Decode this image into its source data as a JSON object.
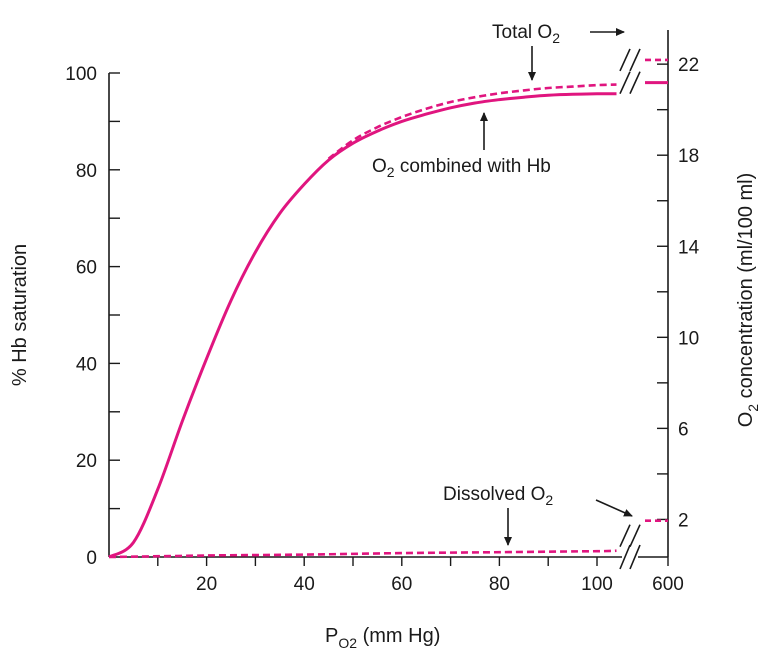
{
  "chart_data": {
    "type": "line",
    "title": "",
    "xlabel": {
      "main": "P",
      "sub": "O2",
      "rest": " (mm Hg)"
    },
    "ylabel_left": "% Hb saturation",
    "ylabel_right": {
      "main": "O",
      "sub": "2",
      "rest": " concentration (ml/100 ml)"
    },
    "x_ticks": [
      {
        "value": 20,
        "label": "20"
      },
      {
        "value": 40,
        "label": "40"
      },
      {
        "value": 60,
        "label": "60"
      },
      {
        "value": 80,
        "label": "80"
      },
      {
        "value": 100,
        "label": "100"
      },
      {
        "value": 600,
        "label": "600"
      }
    ],
    "y_left_ticks": [
      0,
      20,
      40,
      60,
      80,
      100
    ],
    "y_left_range": [
      0,
      100
    ],
    "y_right_ticks": [
      2,
      6,
      10,
      14,
      18,
      22
    ],
    "y_right_range": [
      0.35,
      23.5
    ],
    "x_range": [
      0,
      105
    ],
    "axis_break": "x-axis break between 100 and 600 mm Hg",
    "series": [
      {
        "name": "O2 combined with Hb",
        "style": "solid",
        "color": "#e0157f",
        "x": [
          0,
          5,
          10,
          15,
          20,
          25,
          30,
          35,
          40,
          45,
          50,
          55,
          60,
          65,
          70,
          75,
          80,
          85,
          90,
          95,
          100,
          104
        ],
        "y": [
          0,
          3,
          14,
          28,
          41,
          53,
          63,
          71,
          77,
          82,
          85.5,
          88,
          90,
          91.5,
          92.8,
          93.8,
          94.5,
          95,
          95.4,
          95.6,
          95.7,
          95.7
        ],
        "y_at_600": 98
      },
      {
        "name": "Total O2",
        "style": "dashed",
        "color": "#e0157f",
        "x": [
          45,
          50,
          55,
          60,
          65,
          70,
          75,
          80,
          85,
          90,
          95,
          100,
          104
        ],
        "y": [
          82.3,
          86.1,
          88.8,
          90.9,
          92.6,
          94,
          95,
          95.8,
          96.4,
          96.9,
          97.2,
          97.5,
          97.6
        ],
        "y_at_600": 102.7
      },
      {
        "name": "Dissolved O2",
        "style": "dashed",
        "color": "#e0157f",
        "x": [
          0,
          20,
          40,
          60,
          80,
          100,
          104
        ],
        "y": [
          0,
          0.3,
          0.5,
          0.8,
          1.0,
          1.2,
          1.3
        ],
        "y_at_600": 7.5
      }
    ],
    "annotations": [
      {
        "text_main": "Total O",
        "text_sub": "2"
      },
      {
        "text_main": "O",
        "text_sub": "2",
        "text_rest": " combined with Hb"
      },
      {
        "text_main": "Dissolved O",
        "text_sub": "2"
      }
    ],
    "grid": false,
    "legend": "none",
    "colors": {
      "curve": "#e0157f",
      "axis": "#1a1a1a"
    }
  }
}
